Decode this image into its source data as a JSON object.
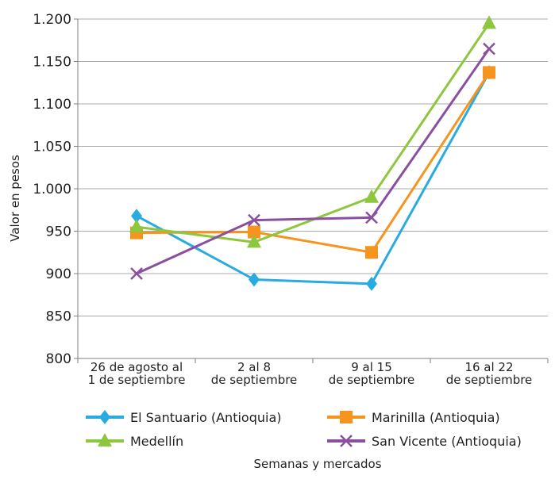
{
  "chart_data": {
    "type": "line",
    "title": "",
    "xlabel": "Semanas y mercados",
    "ylabel": "Valor en pesos",
    "ylim": [
      800,
      1200
    ],
    "y_ticks": [
      800,
      850,
      900,
      950,
      1000,
      1050,
      1100,
      1150,
      1200
    ],
    "y_tick_labels": [
      "800",
      "850",
      "900",
      "950",
      "1.000",
      "1.050",
      "1.100",
      "1.150",
      "1.200"
    ],
    "grid": true,
    "legend_position": "bottom",
    "categories": [
      [
        "26 de agosto al",
        "1 de septiembre"
      ],
      [
        "2 al 8",
        "de septiembre"
      ],
      [
        "9 al 15",
        "de septiembre"
      ],
      [
        "16 al 22",
        "de septiembre"
      ]
    ],
    "series": [
      {
        "name": "El Santuario (Antioquia)",
        "color": "#29abe2",
        "marker": "diamond",
        "values": [
          968,
          893,
          888,
          1137
        ]
      },
      {
        "name": "Marinilla (Antioquia)",
        "color": "#f7941d",
        "marker": "square",
        "values": [
          948,
          949,
          925,
          1137
        ]
      },
      {
        "name": "Medellín",
        "color": "#8dc63f",
        "marker": "triangle",
        "values": [
          955,
          937,
          990,
          1195
        ]
      },
      {
        "name": "San Vicente (Antioquia)",
        "color": "#8b4f9f",
        "marker": "x",
        "values": [
          900,
          963,
          966,
          1165
        ]
      }
    ]
  }
}
